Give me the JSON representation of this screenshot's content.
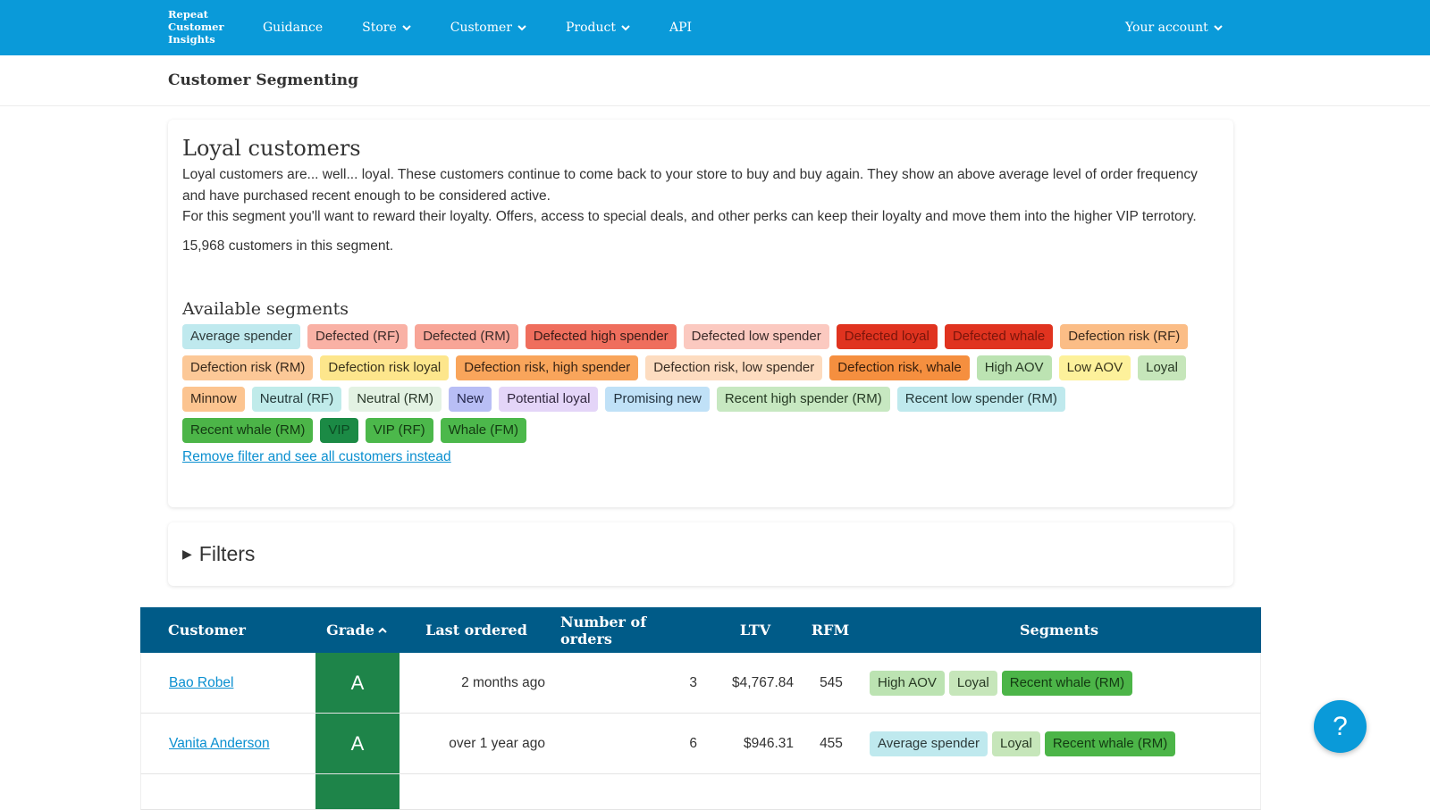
{
  "nav": {
    "brand": "Repeat Customer Insights",
    "items": [
      {
        "label": "Guidance",
        "dropdown": false
      },
      {
        "label": "Store",
        "dropdown": true
      },
      {
        "label": "Customer",
        "dropdown": true
      },
      {
        "label": "Product",
        "dropdown": true
      },
      {
        "label": "API",
        "dropdown": false
      }
    ],
    "account": "Your account"
  },
  "page_title": "Customer Segmenting",
  "segment": {
    "title": "Loyal customers",
    "paragraphs": [
      "Loyal customers are... well... loyal. These customers continue to come back to your store to buy and buy again. They show an above average level of order frequency and have purchased recent enough to be considered active.",
      "For this segment you'll want to reward their loyalty. Offers, access to special deals, and other perks can keep their loyalty and move them into the higher VIP terrotory."
    ],
    "count_text": "15,968 customers in this segment."
  },
  "available_segments": {
    "title": "Available segments",
    "tags": [
      {
        "name": "Average spender",
        "color": "#bfe9ee",
        "text_color": "#2d3a3a"
      },
      {
        "name": "Defected (RF)",
        "color": "#f9b1a5",
        "text_color": "#3a2a28"
      },
      {
        "name": "Defected (RM)",
        "color": "#f8a597",
        "text_color": "#3a2a28"
      },
      {
        "name": "Defected high spender",
        "color": "#ef6e5d",
        "text_color": "#3a1c18"
      },
      {
        "name": "Defected low spender",
        "color": "#fbc9c0",
        "text_color": "#3a2a28"
      },
      {
        "name": "Defected loyal",
        "color": "#e0331f",
        "text_color": "#7a150b"
      },
      {
        "name": "Defected whale",
        "color": "#e0331f",
        "text_color": "#7a150b"
      },
      {
        "name": "Defection risk (RF)",
        "color": "#fbbd86",
        "text_color": "#3a2a1c"
      },
      {
        "name": "Defection risk (RM)",
        "color": "#fcc897",
        "text_color": "#3a2a1c"
      },
      {
        "name": "Defection risk loyal",
        "color": "#fde68c",
        "text_color": "#3a331c"
      },
      {
        "name": "Defection risk, high spender",
        "color": "#f9a55b",
        "text_color": "#3a2414"
      },
      {
        "name": "Defection risk, low spender",
        "color": "#fddcc0",
        "text_color": "#3a2e24"
      },
      {
        "name": "Defection risk, whale",
        "color": "#f58f3f",
        "text_color": "#3a1f0c"
      },
      {
        "name": "High AOV",
        "color": "#bce3b2",
        "text_color": "#283a24"
      },
      {
        "name": "Low AOV",
        "color": "#fdf19b",
        "text_color": "#3a361c"
      },
      {
        "name": "Loyal",
        "color": "#c6e6ba",
        "text_color": "#283a24"
      },
      {
        "name": "Minnow",
        "color": "#fcc490",
        "text_color": "#3a2a1c"
      },
      {
        "name": "Neutral (RF)",
        "color": "#c0ebea",
        "text_color": "#24393a"
      },
      {
        "name": "Neutral (RM)",
        "color": "#e3f2e3",
        "text_color": "#2b3a2b"
      },
      {
        "name": "New",
        "color": "#b8bef5",
        "text_color": "#23264a"
      },
      {
        "name": "Potential loyal",
        "color": "#e4d5f8",
        "text_color": "#32283f"
      },
      {
        "name": "Promising new",
        "color": "#c0e1f7",
        "text_color": "#22323f"
      },
      {
        "name": "Recent high spender (RM)",
        "color": "#c7e8c1",
        "text_color": "#263a24"
      },
      {
        "name": "Recent low spender (RM)",
        "color": "#bfe9ed",
        "text_color": "#24393a"
      },
      {
        "name": "Recent whale (RM)",
        "color": "#4cb548",
        "text_color": "#133a12"
      },
      {
        "name": "VIP",
        "color": "#1b8a45",
        "text_color": "#0b4a22"
      },
      {
        "name": "VIP (RF)",
        "color": "#4cb84b",
        "text_color": "#133a12"
      },
      {
        "name": "Whale (FM)",
        "color": "#4cb84b",
        "text_color": "#133a12"
      }
    ]
  },
  "remove_filter_link": "Remove filter and see all customers instead",
  "filters": {
    "label": "Filters"
  },
  "table": {
    "columns": [
      "Customer",
      "Grade",
      "Last ordered",
      "Number of orders",
      "LTV",
      "RFM",
      "Segments"
    ],
    "sorted_column": 1,
    "rows": [
      {
        "customer": "Bao Robel",
        "grade": "A",
        "last_ordered": "2 months ago",
        "orders": "3",
        "ltv": "$4,767.84",
        "rfm": "545",
        "segments": [
          "High AOV",
          "Loyal",
          "Recent whale (RM)"
        ]
      },
      {
        "customer": "Vanita Anderson",
        "grade": "A",
        "last_ordered": "over 1 year ago",
        "orders": "6",
        "ltv": "$946.31",
        "rfm": "455",
        "segments": [
          "Average spender",
          "Loyal",
          "Recent whale (RM)"
        ]
      }
    ]
  },
  "help": {
    "label": "?"
  }
}
